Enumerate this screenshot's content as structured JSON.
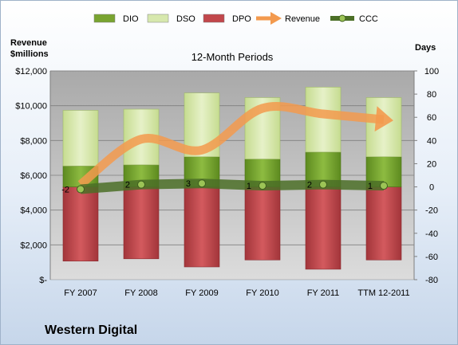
{
  "company": "Western Digital",
  "chart_data": {
    "type": "bar",
    "title": "12-Month Periods",
    "ylabel_left": "Revenue\n$millions",
    "ylabel_right": "Days",
    "categories": [
      "FY 2007",
      "FY 2008",
      "FY 2009",
      "FY 2010",
      "FY 2011",
      "TTM 12-2011"
    ],
    "left_axis": {
      "ylim": [
        0,
        12000
      ],
      "ticks": [
        0,
        2000,
        4000,
        6000,
        8000,
        10000,
        12000
      ],
      "tick_labels": [
        "$-",
        "$2,000",
        "$4,000",
        "$6,000",
        "$8,000",
        "$10,000",
        "$12,000"
      ]
    },
    "right_axis": {
      "ylim": [
        -80,
        100
      ],
      "ticks": [
        -80,
        -60,
        -40,
        -20,
        0,
        20,
        40,
        60,
        80,
        100
      ],
      "tick_labels": [
        "-80",
        "-60",
        "-40",
        "-20",
        "0",
        "20",
        "40",
        "60",
        "80",
        "100"
      ]
    },
    "series": [
      {
        "name": "DIO",
        "axis": "right",
        "kind": "stacked-bar",
        "values": [
          18,
          19,
          26,
          24,
          30,
          26
        ]
      },
      {
        "name": "DSO",
        "axis": "right",
        "kind": "stacked-bar",
        "values": [
          48,
          48,
          55,
          53,
          56,
          51
        ]
      },
      {
        "name": "DPO",
        "axis": "right",
        "kind": "negative-bar",
        "values": [
          -64,
          -62,
          -69,
          -63,
          -71,
          -63
        ]
      },
      {
        "name": "Revenue",
        "axis": "left",
        "kind": "arrow-line",
        "values": [
          5470,
          8074,
          7453,
          9850,
          9526,
          9200
        ]
      },
      {
        "name": "CCC",
        "axis": "right",
        "kind": "line",
        "values": [
          -2,
          2,
          3,
          1,
          2,
          1
        ]
      }
    ],
    "data_labels": [
      "-2",
      "2",
      "3",
      "1",
      "2",
      "1"
    ],
    "colors": {
      "DIO": "#79a430",
      "DSO": "#d7e8ad",
      "DPO": "#c2474b",
      "Revenue": "#f39a4e",
      "CCC": "#4b6f27"
    },
    "legend_position": "top",
    "grid": true
  }
}
